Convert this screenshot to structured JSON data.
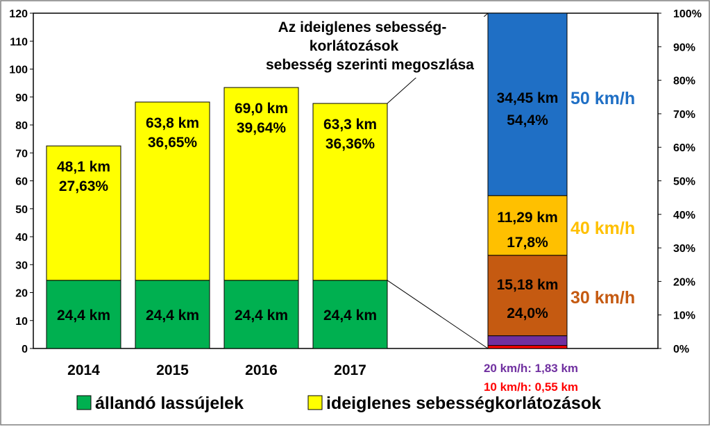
{
  "chart_data": [
    {
      "type": "bar",
      "stacked": true,
      "title": "",
      "categories": [
        "2014",
        "2015",
        "2016",
        "2017"
      ],
      "ylim": [
        0,
        120
      ],
      "yticks": [
        0,
        10,
        20,
        30,
        40,
        50,
        60,
        70,
        80,
        90,
        100,
        110,
        120
      ],
      "grid": false,
      "legend": "bottom",
      "series": [
        {
          "name": "állandó lassújelek",
          "color": "#00b050",
          "values": [
            24.4,
            24.4,
            24.4,
            24.4
          ],
          "labels": [
            "24,4 km",
            "24,4 km",
            "24,4 km",
            "24,4 km"
          ]
        },
        {
          "name": "ideiglenes sebességkorlátozások",
          "color": "#ffff00",
          "values": [
            48.1,
            63.8,
            69.0,
            63.3
          ],
          "labels_km": [
            "48,1 km",
            "63,8 km",
            "69,0 km",
            "63,3 km"
          ],
          "labels_pct": [
            "27,63%",
            "36,65%",
            "39,64%",
            "36,36%"
          ]
        }
      ]
    },
    {
      "type": "bar",
      "stacked": true,
      "title_lines": [
        "Az ideiglenes sebesség-",
        "korlátozások",
        "sebesség szerinti megoszlása"
      ],
      "ylim": [
        0,
        100
      ],
      "yticks": [
        "0%",
        "10%",
        "20%",
        "30%",
        "40%",
        "50%",
        "60%",
        "70%",
        "80%",
        "90%",
        "100%"
      ],
      "segments": [
        {
          "speed": "10 km/h",
          "km": 0.55,
          "pct": 0.9,
          "color": "#ff0000",
          "text": "10 km/h: 0,55 km"
        },
        {
          "speed": "20 km/h",
          "km": 1.83,
          "pct": 2.9,
          "color": "#7030a0",
          "text": "20 km/h: 1,83 km"
        },
        {
          "speed": "30 km/h",
          "km": 15.18,
          "pct": 24.0,
          "color": "#c55a11",
          "label_km": "15,18 km",
          "label_pct": "24,0%",
          "side_label": "30 km/h"
        },
        {
          "speed": "40 km/h",
          "km": 11.29,
          "pct": 17.8,
          "color": "#ffc000",
          "label_km": "11,29 km",
          "label_pct": "17,8%",
          "side_label": "40 km/h"
        },
        {
          "speed": "50 km/h",
          "km": 34.45,
          "pct": 54.4,
          "color": "#1f6fc5",
          "label_km": "34,45 km",
          "label_pct": "54,4%",
          "side_label": "50 km/h"
        }
      ]
    }
  ]
}
